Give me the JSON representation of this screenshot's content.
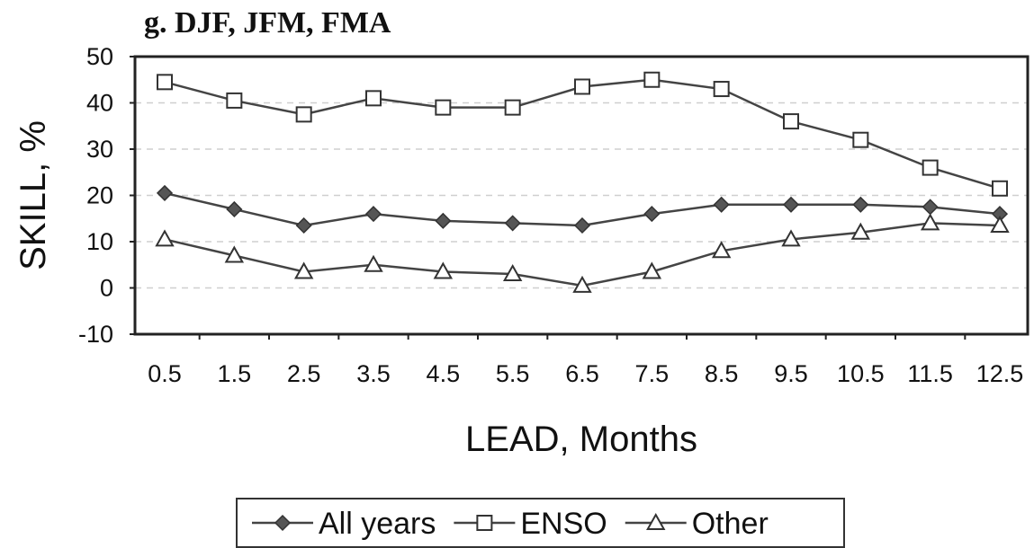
{
  "chart_data": {
    "type": "line",
    "title": "g. DJF, JFM, FMA",
    "xlabel": "LEAD, Months",
    "ylabel": "SKILL, %",
    "x": [
      0.5,
      1.5,
      2.5,
      3.5,
      4.5,
      5.5,
      6.5,
      7.5,
      8.5,
      9.5,
      10.5,
      11.5,
      12.5
    ],
    "x_tick_labels": [
      "0.5",
      "1.5",
      "2.5",
      "3.5",
      "4.5",
      "5.5",
      "6.5",
      "7.5",
      "8.5",
      "9.5",
      "10.5",
      "11.5",
      "12.5"
    ],
    "ylim": [
      -10,
      50
    ],
    "y_ticks": [
      -10,
      0,
      10,
      20,
      30,
      40,
      50
    ],
    "grid": "horizontal dashed",
    "legend_position": "bottom",
    "series": [
      {
        "name": "All years",
        "marker": "diamond",
        "color": "#505050",
        "values": [
          20.5,
          17,
          13.5,
          16,
          14.5,
          14,
          13.5,
          16,
          18,
          18,
          18,
          17.5,
          16
        ]
      },
      {
        "name": "ENSO",
        "marker": "square",
        "color": "#505050",
        "values": [
          44.5,
          40.5,
          37.5,
          41,
          39,
          39,
          43.5,
          45,
          43,
          36,
          32,
          26,
          21.5
        ]
      },
      {
        "name": "Other",
        "marker": "triangle",
        "color": "#505050",
        "values": [
          10.5,
          7,
          3.5,
          5,
          3.5,
          3,
          0.5,
          3.5,
          8,
          10.5,
          12,
          14,
          13.5
        ]
      }
    ]
  }
}
